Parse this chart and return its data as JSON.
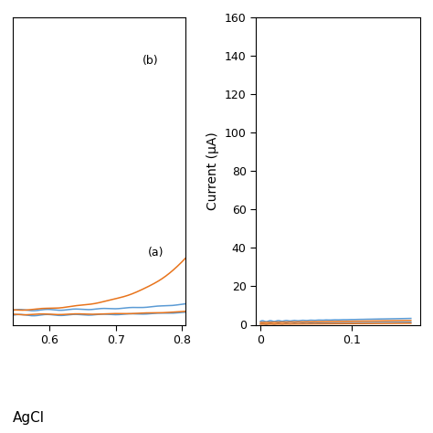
{
  "left_plot": {
    "xlim": [
      0.545,
      0.805
    ],
    "ylim": [
      -5,
      160
    ],
    "xticks": [
      0.6,
      0.7,
      0.8
    ],
    "xtick_labels": [
      "0.6",
      "0.7",
      "0.8"
    ],
    "annotation_a": "(a)",
    "annotation_b": "(b)",
    "orange_color": "#E8741C",
    "blue_color": "#5B9BD5"
  },
  "right_plot": {
    "xlim": [
      -0.005,
      0.175
    ],
    "ylim": [
      0,
      160
    ],
    "yticks": [
      0,
      20,
      40,
      60,
      80,
      100,
      120,
      140,
      160
    ],
    "xticks": [
      0,
      0.1
    ],
    "xtick_labels": [
      "0",
      "0.1"
    ],
    "ylabel": "Current (μA)",
    "orange_color": "#E8741C",
    "blue_color": "#5B9BD5"
  },
  "figsize": [
    4.74,
    4.74
  ],
  "dpi": 100
}
